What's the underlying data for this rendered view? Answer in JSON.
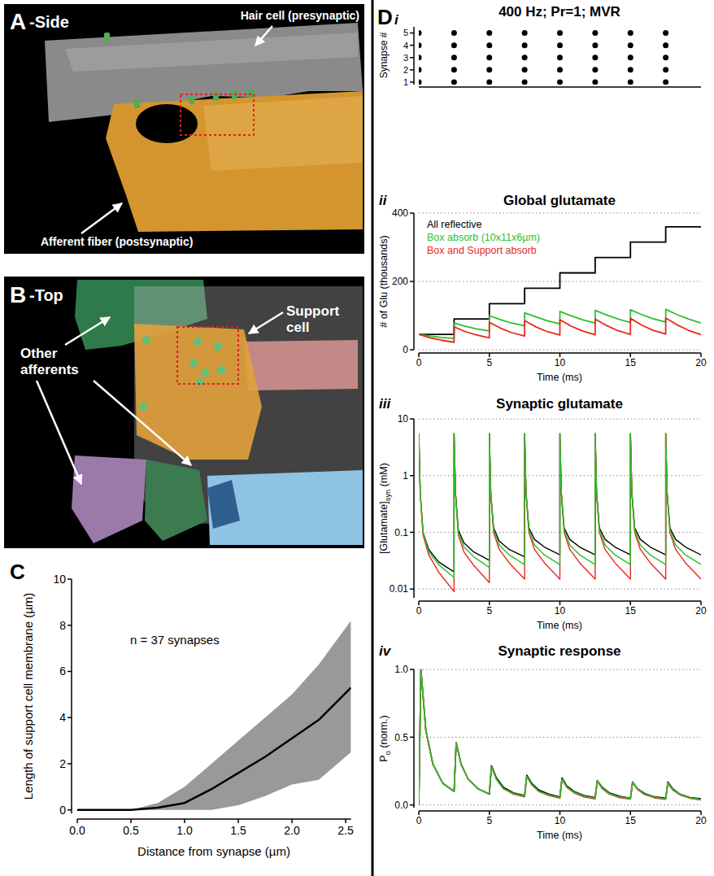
{
  "panels": [
    {
      "panel_label": "A",
      "view": "-Side",
      "labels": [
        "Hair cell (presynaptic)",
        "Afferent fiber (postsynaptic)"
      ]
    },
    {
      "panel_label": "B",
      "view": "-Top",
      "labels": [
        "Other afferents",
        "Support cell"
      ]
    }
  ],
  "chart_data": [
    {
      "type": "line",
      "panel_label": "C",
      "xlabel": "Distance from synapse (µm)",
      "ylabel": "Length of support cell membrane (µm)",
      "annotations": [
        "n = 37 synapses"
      ],
      "x": [
        0,
        0.25,
        0.5,
        0.75,
        1.0,
        1.25,
        1.5,
        1.75,
        2.0,
        2.25,
        2.55
      ],
      "series": [
        {
          "type": "band",
          "color": "#999999",
          "upper": [
            0,
            0,
            0,
            0.3,
            1.0,
            2.0,
            3.0,
            4.0,
            5.0,
            6.3,
            8.2
          ],
          "lower": [
            0,
            0,
            0,
            0,
            0,
            0,
            0.2,
            0.6,
            1.1,
            1.3,
            2.5
          ]
        },
        {
          "type": "line",
          "color": "#000000",
          "values": [
            0,
            0,
            0,
            0.1,
            0.3,
            0.9,
            1.6,
            2.3,
            3.1,
            3.9,
            5.3
          ]
        }
      ],
      "xlim": [
        0,
        2.55
      ],
      "ylim": [
        -0.15,
        10
      ],
      "xticks": [
        {
          "value": 0,
          "label": "0.0"
        },
        0.5,
        {
          "value": 1,
          "label": "1.0"
        },
        1.5,
        {
          "value": 2,
          "label": "2.0"
        },
        2.5
      ],
      "yticks": [
        0,
        2,
        4,
        6,
        8,
        10
      ]
    },
    {
      "type": "scatter",
      "panel_label": "D",
      "subpanel": "i",
      "title": "400 Hz; Pr=1; MVR",
      "ylabel": "Synapse #",
      "x": [
        0,
        2.5,
        5,
        7.5,
        10,
        12.5,
        15,
        17.5
      ],
      "series": [
        {
          "values": [
            1,
            1,
            1,
            1,
            1,
            1,
            1,
            1
          ]
        },
        {
          "values": [
            2,
            2,
            2,
            2,
            2,
            2,
            2,
            2
          ]
        },
        {
          "values": [
            3,
            3,
            3,
            3,
            3,
            3,
            3,
            3
          ]
        },
        {
          "values": [
            4,
            4,
            4,
            4,
            4,
            4,
            4,
            4
          ]
        },
        {
          "values": [
            5,
            5,
            5,
            5,
            5,
            5,
            5,
            5
          ]
        }
      ],
      "xlim": [
        0,
        20
      ],
      "ylim": [
        0.8,
        5.5
      ],
      "yticks": [
        1,
        2,
        3,
        4,
        5
      ],
      "tick_labels": "y",
      "color": "#000000",
      "marker": "circle"
    },
    {
      "type": "line",
      "subpanel": "ii",
      "title": "Global glutamate",
      "xlabel": "Time (ms)",
      "ylabel": "# of Glu (thousands)",
      "x": [
        0,
        0.8,
        1.6,
        2.5,
        2.5,
        3.3,
        4.1,
        5,
        5,
        5.8,
        6.6,
        7.5,
        7.5,
        8.3,
        9.1,
        10,
        10,
        10.8,
        11.6,
        12.5,
        12.5,
        13.3,
        14.1,
        15,
        15,
        15.8,
        16.6,
        17.5,
        17.5,
        18.3,
        19.1,
        20
      ],
      "series": [
        {
          "name": "All reflective",
          "color": "#000000",
          "values": [
            45,
            45,
            45,
            45,
            90,
            90,
            90,
            90,
            135,
            135,
            135,
            135,
            180,
            180,
            180,
            180,
            225,
            225,
            225,
            225,
            270,
            270,
            270,
            270,
            315,
            315,
            315,
            315,
            360,
            360,
            360,
            360
          ]
        },
        {
          "name": "Box absorb (10x11x6µm)",
          "color": "#2dbf2d",
          "values": [
            45,
            40,
            36,
            33,
            78,
            69,
            61,
            55,
            100,
            88,
            78,
            70,
            108,
            96,
            85,
            76,
            112,
            99,
            88,
            78,
            115,
            102,
            90,
            80,
            117,
            103,
            91,
            81,
            118,
            103,
            90,
            78
          ]
        },
        {
          "name": "Box and Support absorb",
          "color": "#e8281e",
          "values": [
            45,
            35,
            28,
            22,
            67,
            53,
            43,
            35,
            80,
            63,
            50,
            40,
            85,
            67,
            53,
            43,
            88,
            69,
            55,
            44,
            90,
            71,
            56,
            45,
            92,
            72,
            57,
            46,
            93,
            73,
            57,
            44
          ]
        }
      ],
      "xlim": [
        0,
        20
      ],
      "ylim": [
        0,
        400
      ],
      "xticks": [
        0,
        5,
        10,
        15,
        20
      ],
      "yticks": [
        0,
        200,
        400
      ],
      "grid": true,
      "legend": "upper left"
    },
    {
      "type": "line",
      "subpanel": "iii",
      "title": "Synaptic glutamate",
      "xlabel": "Time (ms)",
      "ylabel": {
        "text": "[Glutamate]",
        "subscript": "syn",
        "suffix": " (mM)"
      },
      "log": "y",
      "x": [
        0,
        0.1,
        0.3,
        0.7,
        1.4,
        2.5,
        2.5,
        2.6,
        2.8,
        3.2,
        3.9,
        5,
        5,
        5.1,
        5.3,
        5.7,
        6.4,
        7.5,
        7.5,
        7.6,
        7.8,
        8.2,
        8.9,
        10,
        10,
        10.1,
        10.3,
        10.7,
        11.4,
        12.5,
        12.5,
        12.6,
        12.8,
        13.2,
        13.9,
        15,
        15,
        15.1,
        15.3,
        15.7,
        16.4,
        17.5,
        17.5,
        17.6,
        17.8,
        18.2,
        18.9,
        20
      ],
      "series": [
        {
          "color": "#000000",
          "values": [
            5.5,
            0.5,
            0.1,
            0.05,
            0.03,
            0.02,
            5.5,
            0.5,
            0.11,
            0.065,
            0.045,
            0.032,
            5.5,
            0.5,
            0.12,
            0.07,
            0.05,
            0.037,
            5.5,
            0.5,
            0.12,
            0.075,
            0.055,
            0.04,
            5.5,
            0.5,
            0.12,
            0.075,
            0.055,
            0.04,
            5.5,
            0.5,
            0.12,
            0.075,
            0.055,
            0.04,
            5.5,
            0.5,
            0.12,
            0.075,
            0.055,
            0.04,
            5.5,
            0.5,
            0.12,
            0.075,
            0.055,
            0.04
          ]
        },
        {
          "color": "#e8281e",
          "values": [
            5.5,
            0.5,
            0.09,
            0.04,
            0.02,
            0.009,
            5.5,
            0.5,
            0.09,
            0.045,
            0.026,
            0.013,
            5.5,
            0.5,
            0.1,
            0.05,
            0.029,
            0.015,
            5.5,
            0.5,
            0.1,
            0.05,
            0.029,
            0.015,
            5.5,
            0.5,
            0.1,
            0.05,
            0.029,
            0.015,
            5.5,
            0.5,
            0.1,
            0.05,
            0.029,
            0.015,
            5.5,
            0.5,
            0.1,
            0.05,
            0.029,
            0.015,
            5.5,
            0.5,
            0.1,
            0.05,
            0.029,
            0.015
          ]
        },
        {
          "color": "#2dbf2d",
          "values": [
            5.5,
            0.5,
            0.1,
            0.045,
            0.027,
            0.016,
            5.5,
            0.5,
            0.1,
            0.055,
            0.037,
            0.024,
            5.5,
            0.5,
            0.11,
            0.06,
            0.04,
            0.027,
            5.5,
            0.5,
            0.11,
            0.06,
            0.04,
            0.027,
            5.5,
            0.5,
            0.11,
            0.06,
            0.04,
            0.027,
            5.5,
            0.5,
            0.11,
            0.06,
            0.04,
            0.027,
            5.5,
            0.5,
            0.11,
            0.06,
            0.04,
            0.027,
            5.5,
            0.5,
            0.11,
            0.06,
            0.04,
            0.027
          ]
        }
      ],
      "xlim": [
        0,
        20
      ],
      "ylim": [
        0.007,
        10
      ],
      "xticks": [
        0,
        5,
        10,
        15,
        20
      ],
      "yticks": [
        0.01,
        0.1,
        1,
        10
      ],
      "grid": true
    },
    {
      "type": "line",
      "subpanel": "iv",
      "title": "Synaptic response",
      "xlabel": "Time (ms)",
      "ylabel": {
        "text": "P",
        "subscript": "o",
        "suffix": " (norm.)"
      },
      "x": [
        0,
        0.15,
        0.5,
        1,
        1.7,
        2.5,
        2.65,
        3,
        3.5,
        4.2,
        5,
        5.15,
        5.5,
        6,
        6.7,
        7.5,
        7.65,
        8,
        8.5,
        9.2,
        10,
        10.15,
        10.5,
        11,
        11.7,
        12.5,
        12.65,
        13,
        13.5,
        14.2,
        15,
        15.15,
        15.5,
        16,
        16.7,
        17.5,
        17.65,
        18,
        18.5,
        19.2,
        20
      ],
      "series": [
        {
          "color": "#000000",
          "values": [
            0,
            1.0,
            0.55,
            0.3,
            0.16,
            0.1,
            0.46,
            0.3,
            0.19,
            0.12,
            0.08,
            0.29,
            0.2,
            0.13,
            0.09,
            0.07,
            0.22,
            0.16,
            0.11,
            0.08,
            0.06,
            0.2,
            0.14,
            0.1,
            0.07,
            0.055,
            0.18,
            0.13,
            0.09,
            0.065,
            0.05,
            0.17,
            0.12,
            0.085,
            0.06,
            0.05,
            0.17,
            0.12,
            0.08,
            0.055,
            0.045
          ]
        },
        {
          "color": "#e8281e",
          "values": [
            0,
            1.0,
            0.55,
            0.3,
            0.16,
            0.1,
            0.46,
            0.3,
            0.19,
            0.12,
            0.08,
            0.285,
            0.19,
            0.12,
            0.08,
            0.06,
            0.21,
            0.15,
            0.1,
            0.07,
            0.05,
            0.19,
            0.13,
            0.09,
            0.06,
            0.045,
            0.175,
            0.12,
            0.08,
            0.055,
            0.043,
            0.165,
            0.115,
            0.077,
            0.053,
            0.042,
            0.16,
            0.11,
            0.075,
            0.05,
            0.038
          ]
        },
        {
          "color": "#2dbf2d",
          "values": [
            0,
            1.0,
            0.55,
            0.3,
            0.16,
            0.1,
            0.46,
            0.3,
            0.19,
            0.12,
            0.08,
            0.28,
            0.19,
            0.12,
            0.085,
            0.065,
            0.21,
            0.15,
            0.1,
            0.075,
            0.055,
            0.19,
            0.13,
            0.095,
            0.065,
            0.05,
            0.18,
            0.125,
            0.085,
            0.06,
            0.048,
            0.17,
            0.12,
            0.08,
            0.058,
            0.045,
            0.165,
            0.115,
            0.078,
            0.052,
            0.04
          ]
        }
      ],
      "xlim": [
        0,
        20
      ],
      "ylim": [
        -0.02,
        1
      ],
      "xticks": [
        0,
        5,
        10,
        15,
        20
      ],
      "yticks": [
        {
          "value": 0,
          "label": "0.0"
        },
        0.5,
        {
          "value": 1,
          "label": "1.0"
        }
      ],
      "grid": true
    }
  ]
}
